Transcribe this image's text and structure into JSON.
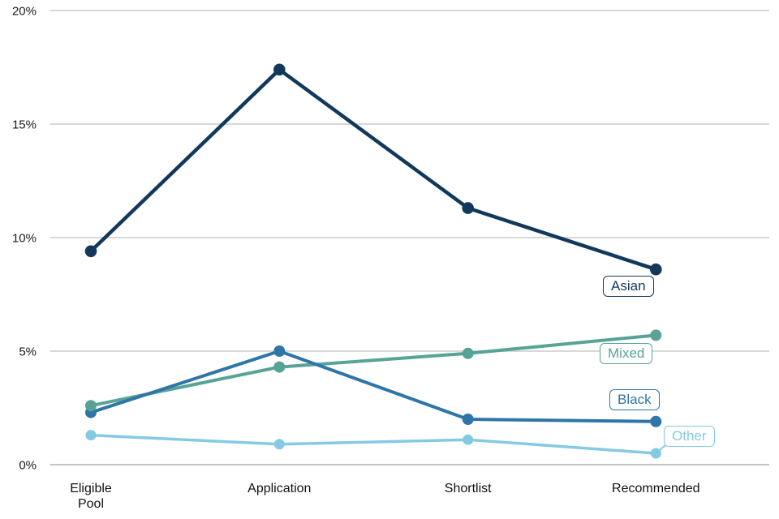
{
  "chart_data": {
    "type": "line",
    "title": "",
    "xlabel": "",
    "ylabel": "",
    "categories": [
      "Eligible\nPool",
      "Application",
      "Shortlist",
      "Recommended"
    ],
    "series": [
      {
        "name": "Asian",
        "color": "#12395B",
        "values": [
          9.4,
          17.4,
          11.3,
          8.6
        ]
      },
      {
        "name": "Black",
        "color": "#2E76A8",
        "values": [
          2.3,
          5.0,
          2.0,
          1.9
        ]
      },
      {
        "name": "Mixed",
        "color": "#57A497",
        "values": [
          2.6,
          4.3,
          4.9,
          5.7
        ]
      },
      {
        "name": "Other",
        "color": "#85CAE4",
        "values": [
          1.3,
          0.9,
          1.1,
          0.5
        ]
      }
    ],
    "y_tick_values": [
      0,
      5,
      10,
      15,
      20
    ],
    "y_tick_labels": [
      "0%",
      "5%",
      "10%",
      "15%",
      "20%"
    ],
    "ylim": [
      0,
      20
    ],
    "grid": true,
    "legend_position": "inline-right-labels"
  },
  "colors": {
    "background": "#ffffff",
    "gridline": "#d8d8d8",
    "axis_line": "#c4c4c4",
    "tick_text": "#1a1a1a",
    "category_text": "#111111"
  }
}
